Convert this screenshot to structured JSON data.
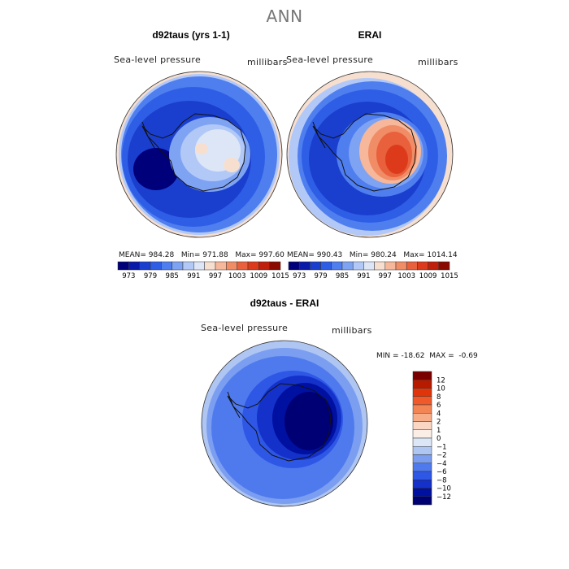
{
  "figure_title": "ANN",
  "chart_data": [
    {
      "type": "heatmap",
      "panel": "d92taus (yrs 1-1)",
      "variable": "Sea-level pressure",
      "units": "millibars",
      "stats": {
        "mean": "984.28",
        "min": "971.88",
        "max": "997.60"
      },
      "colorbar_ticks": [
        "973",
        "979",
        "985",
        "991",
        "997",
        "1003",
        "1009",
        "1015"
      ]
    },
    {
      "type": "heatmap",
      "panel": "ERAI",
      "variable": "Sea-level pressure",
      "units": "millibars",
      "stats": {
        "mean": "990.43",
        "min": "980.24",
        "max": "1014.14"
      },
      "colorbar_ticks": [
        "973",
        "979",
        "985",
        "991",
        "997",
        "1003",
        "1009",
        "1015"
      ]
    },
    {
      "type": "heatmap",
      "panel": "d92taus - ERAI",
      "variable": "Sea-level pressure",
      "units": "millibars",
      "stats": {
        "min": "-18.62",
        "max": "-0.69"
      },
      "colorbar_ticks": [
        "12",
        "10",
        "8",
        "6",
        "4",
        "2",
        "1",
        "0",
        "−1",
        "−2",
        "−4",
        "−6",
        "−8",
        "−10",
        "−12"
      ]
    }
  ],
  "labels": {
    "mean_prefix": "MEAN=",
    "min_prefix": "Min=",
    "max_prefix": "Max=",
    "diff_min_prefix": "MIN =",
    "diff_max_prefix": "MAX ="
  },
  "colors": {
    "abs_scale": [
      "#00007a",
      "#0a1aa8",
      "#1a3fcf",
      "#2f5ee6",
      "#4f7eef",
      "#7fa3f3",
      "#b2c9f8",
      "#dde6f6",
      "#f7dfd0",
      "#f6b79a",
      "#f08c66",
      "#e9603c",
      "#dd3a1b",
      "#bf1f0b",
      "#8a0a00"
    ],
    "diff_scale": [
      "#7a0000",
      "#b81a00",
      "#e0350b",
      "#f05a2a",
      "#f38454",
      "#f7ad88",
      "#fbd6c2",
      "#fbeee6",
      "#dbe6f7",
      "#afc6f3",
      "#7b9ef0",
      "#4f7aee",
      "#2e57e6",
      "#1431c9",
      "#0010a0",
      "#000075"
    ],
    "coast": "#111111"
  }
}
